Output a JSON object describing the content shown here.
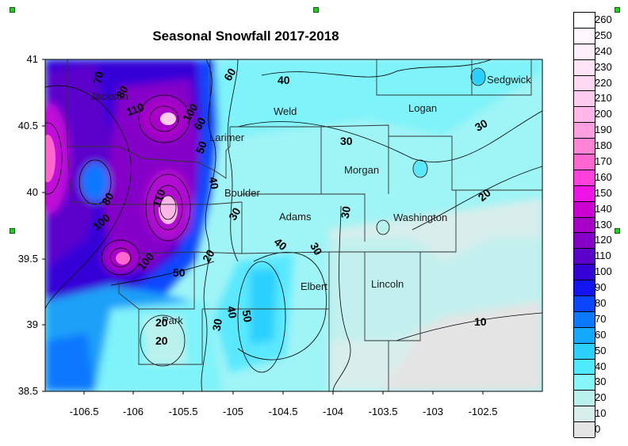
{
  "title": "Seasonal Snowfall 2017-2018",
  "y_axis": {
    "ticks": [
      "41",
      "40.5",
      "40",
      "39.5",
      "39",
      "38.5"
    ]
  },
  "x_axis": {
    "ticks": [
      "-106.5",
      "-106",
      "-105.5",
      "-105",
      "-104.5",
      "-104",
      "-103.5",
      "-103",
      "-102.5"
    ]
  },
  "counties": [
    "Jackson",
    "Larimer",
    "Weld",
    "Logan",
    "Sedgwick",
    "Morgan",
    "Boulder",
    "Adams",
    "Washington",
    "Elbert",
    "Lincoln",
    "Park"
  ],
  "contour_labels": [
    "70",
    "80",
    "110",
    "100",
    "60",
    "60",
    "40",
    "50",
    "40",
    "30",
    "30",
    "20",
    "110",
    "80",
    "100",
    "40",
    "30",
    "30",
    "30",
    "100",
    "50",
    "40",
    "50",
    "20",
    "30",
    "10",
    "20",
    "20"
  ],
  "legend": {
    "labels": [
      "260",
      "250",
      "240",
      "230",
      "220",
      "210",
      "200",
      "190",
      "180",
      "170",
      "160",
      "150",
      "140",
      "130",
      "120",
      "110",
      "100",
      "90",
      "80",
      "70",
      "60",
      "50",
      "40",
      "30",
      "20",
      "10",
      "0"
    ],
    "colors": [
      "#ffffff",
      "#fff7fd",
      "#ffeefb",
      "#ffe4f8",
      "#ffd8f4",
      "#ffcbef",
      "#ffb7ea",
      "#ff9fe2",
      "#ff84d8",
      "#ff66cf",
      "#ff40dc",
      "#ee14e6",
      "#cc00d0",
      "#a800c8",
      "#8400c8",
      "#5c00cc",
      "#3400d8",
      "#1414f0",
      "#0a46ff",
      "#0a78ff",
      "#14a8ff",
      "#2cd0ff",
      "#50eaff",
      "#86f6f8",
      "#bcf2ee",
      "#d8eeec",
      "#e4e4e4"
    ]
  }
}
